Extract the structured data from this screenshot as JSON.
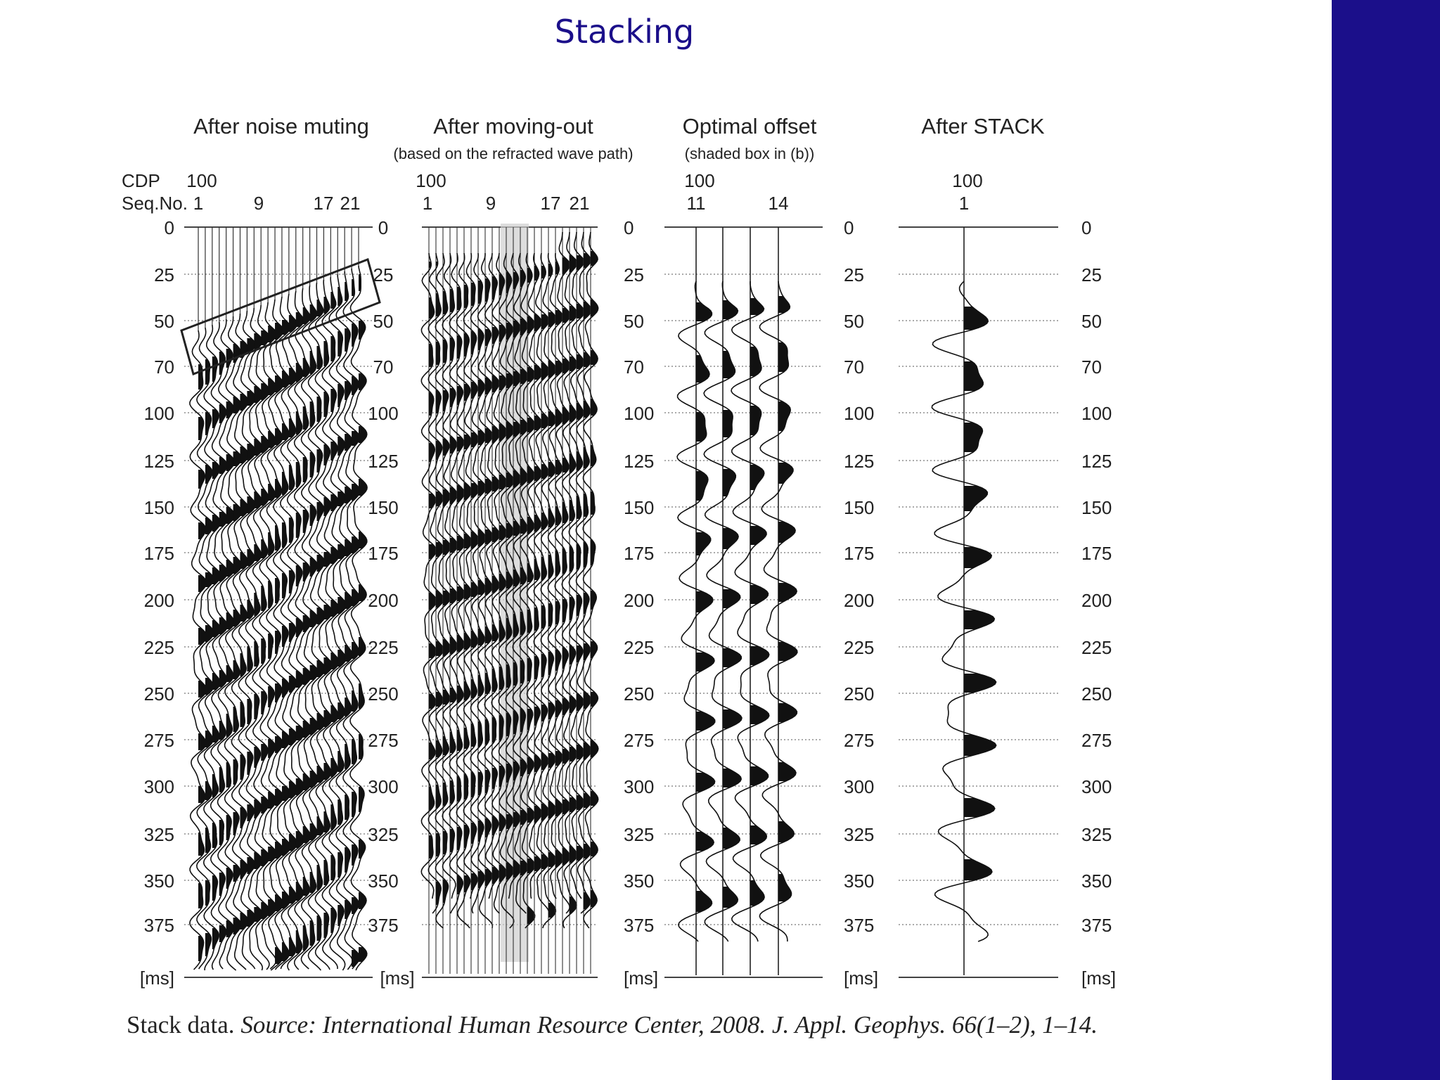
{
  "slide": {
    "title": "Stacking",
    "accent_color": "#1b0f8a"
  },
  "figure": {
    "panels": [
      {
        "title": "After noise muting",
        "subtitle": "",
        "cdp": "100",
        "seq_label": "CDP",
        "seq_sub_label": "Seq.No.",
        "seq_numbers": [
          "1",
          "9",
          "17",
          "21"
        ]
      },
      {
        "title": "After moving-out",
        "subtitle": "(based on the refracted wave path)",
        "cdp": "100",
        "seq_numbers": [
          "1",
          "9",
          "17",
          "21"
        ]
      },
      {
        "title": "Optimal offset",
        "subtitle": "(shaded box in (b))",
        "cdp": "100",
        "seq_numbers": [
          "11",
          "14"
        ]
      },
      {
        "title": "After STACK",
        "subtitle": "",
        "cdp": "100",
        "seq_numbers": [
          "1"
        ]
      }
    ],
    "time_axis": {
      "unit": "[ms]",
      "ticks": [
        "0",
        "25",
        "50",
        "70",
        "100",
        "125",
        "150",
        "175",
        "200",
        "225",
        "250",
        "275",
        "300",
        "325",
        "350",
        "375"
      ]
    }
  },
  "caption": {
    "lead": "Stack data.",
    "source": "Source: International Human Resource Center, 2008. J. Appl. Geophys. 66(1–2), 1–14."
  }
}
